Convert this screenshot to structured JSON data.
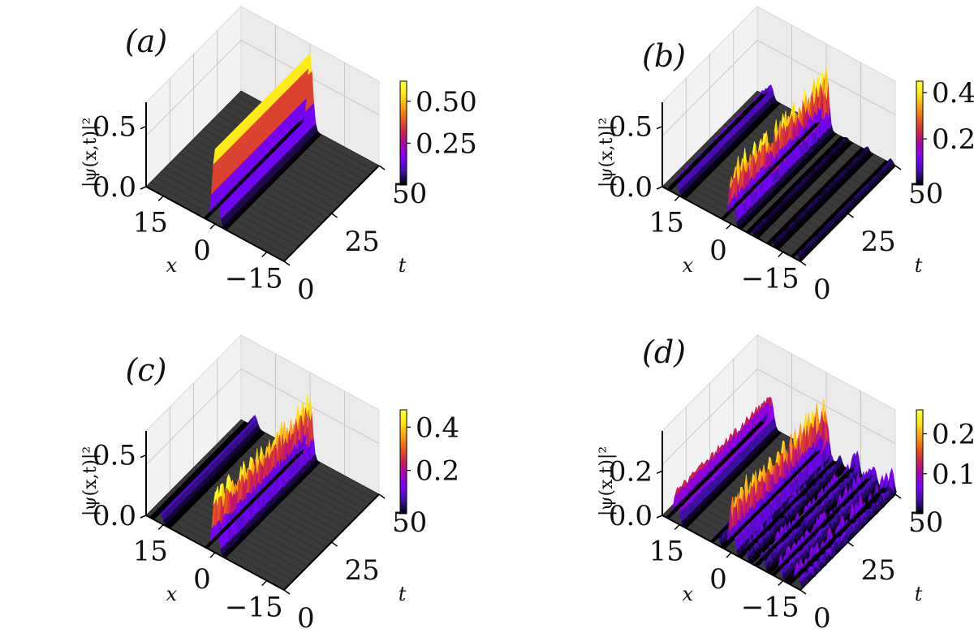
{
  "chart_data": [
    {
      "panel": "(a)",
      "type": "surface3d",
      "xlabel": "x",
      "tlabel": "t",
      "zlabel": "|ψ(x,t)|²",
      "x_ticks": [
        "15",
        "0",
        "−15"
      ],
      "t_ticks": [
        "0",
        "25",
        "50"
      ],
      "z_ticks": [
        "0.0",
        "0.5"
      ],
      "colorbar_ticks": [
        "0.50",
        "0.25"
      ],
      "colorbar_values": [
        0.5,
        0.25
      ],
      "colorbar_max": 0.62,
      "xlim": [
        -20,
        20
      ],
      "tlim": [
        0,
        50
      ],
      "zlim": [
        0,
        0.7
      ],
      "peaks": [
        {
          "x": 0,
          "amp": 0.62,
          "width": 1.1,
          "osc": 0.0
        }
      ]
    },
    {
      "panel": "(b)",
      "type": "surface3d",
      "xlabel": "x",
      "tlabel": "t",
      "zlabel": "|ψ(x,t)|²",
      "x_ticks": [
        "15",
        "0",
        "−15"
      ],
      "t_ticks": [
        "0",
        "25",
        "50"
      ],
      "z_ticks": [
        "0.0",
        "0.5"
      ],
      "colorbar_ticks": [
        "0.4",
        "0.2"
      ],
      "colorbar_values": [
        0.4,
        0.2
      ],
      "colorbar_max": 0.45,
      "xlim": [
        -20,
        20
      ],
      "tlim": [
        0,
        50
      ],
      "zlim": [
        0,
        0.7
      ],
      "peaks": [
        {
          "x": 0,
          "amp": 0.4,
          "width": 1.0,
          "osc": 0.12
        },
        {
          "x": 16,
          "amp": 0.13,
          "width": 0.9,
          "osc": 0.02
        },
        {
          "x": -6,
          "amp": 0.03,
          "width": 0.6,
          "osc": 0.015
        },
        {
          "x": -12,
          "amp": 0.03,
          "width": 0.6,
          "osc": 0.015
        },
        {
          "x": -19,
          "amp": 0.04,
          "width": 0.6,
          "osc": 0.02
        }
      ]
    },
    {
      "panel": "(c)",
      "type": "surface3d",
      "xlabel": "x",
      "tlabel": "t",
      "zlabel": "|ψ(x,t)|²",
      "x_ticks": [
        "15",
        "0",
        "−15"
      ],
      "t_ticks": [
        "0",
        "25",
        "50"
      ],
      "z_ticks": [
        "0.0",
        "0.5"
      ],
      "colorbar_ticks": [
        "0.4",
        "0.2"
      ],
      "colorbar_values": [
        0.4,
        0.2
      ],
      "colorbar_max": 0.48,
      "xlim": [
        -20,
        20
      ],
      "tlim": [
        0,
        50
      ],
      "zlim": [
        0,
        0.7
      ],
      "peaks": [
        {
          "x": 0,
          "amp": 0.44,
          "width": 1.0,
          "osc": 0.1
        },
        {
          "x": 16,
          "amp": 0.09,
          "width": 1.0,
          "osc": 0.01
        }
      ]
    },
    {
      "panel": "(d)",
      "type": "surface3d",
      "xlabel": "x",
      "tlabel": "t",
      "zlabel": "|ψ(x,t)|²",
      "x_ticks": [
        "15",
        "0",
        "−15"
      ],
      "t_ticks": [
        "0",
        "25",
        "50"
      ],
      "z_ticks": [
        "0.0",
        "0.2"
      ],
      "colorbar_ticks": [
        "0.2",
        "0.1"
      ],
      "colorbar_values": [
        0.2,
        0.1
      ],
      "colorbar_max": 0.26,
      "xlim": [
        -20,
        20
      ],
      "tlim": [
        0,
        50
      ],
      "zlim": [
        0,
        0.38
      ],
      "peaks": [
        {
          "x": 0,
          "amp": 0.22,
          "width": 1.0,
          "osc": 0.07
        },
        {
          "x": 16,
          "amp": 0.14,
          "width": 1.0,
          "osc": 0.02
        },
        {
          "x": 4,
          "amp": 0.04,
          "width": 0.7,
          "osc": 0.03
        },
        {
          "x": -4,
          "amp": 0.05,
          "width": 0.7,
          "osc": 0.04
        },
        {
          "x": -9,
          "amp": 0.06,
          "width": 0.8,
          "osc": 0.05
        },
        {
          "x": -14,
          "amp": 0.07,
          "width": 0.8,
          "osc": 0.05
        },
        {
          "x": -19,
          "amp": 0.07,
          "width": 0.9,
          "osc": 0.06
        }
      ]
    }
  ],
  "colors": {
    "colormap": [
      "#000000",
      "#3b0fa0",
      "#7b00ff",
      "#a000c0",
      "#cc2050",
      "#e85a1a",
      "#f8a012",
      "#ffe812",
      "#ffff40"
    ],
    "floor": "#3a3a3a",
    "pane": "#f2f2f2"
  }
}
